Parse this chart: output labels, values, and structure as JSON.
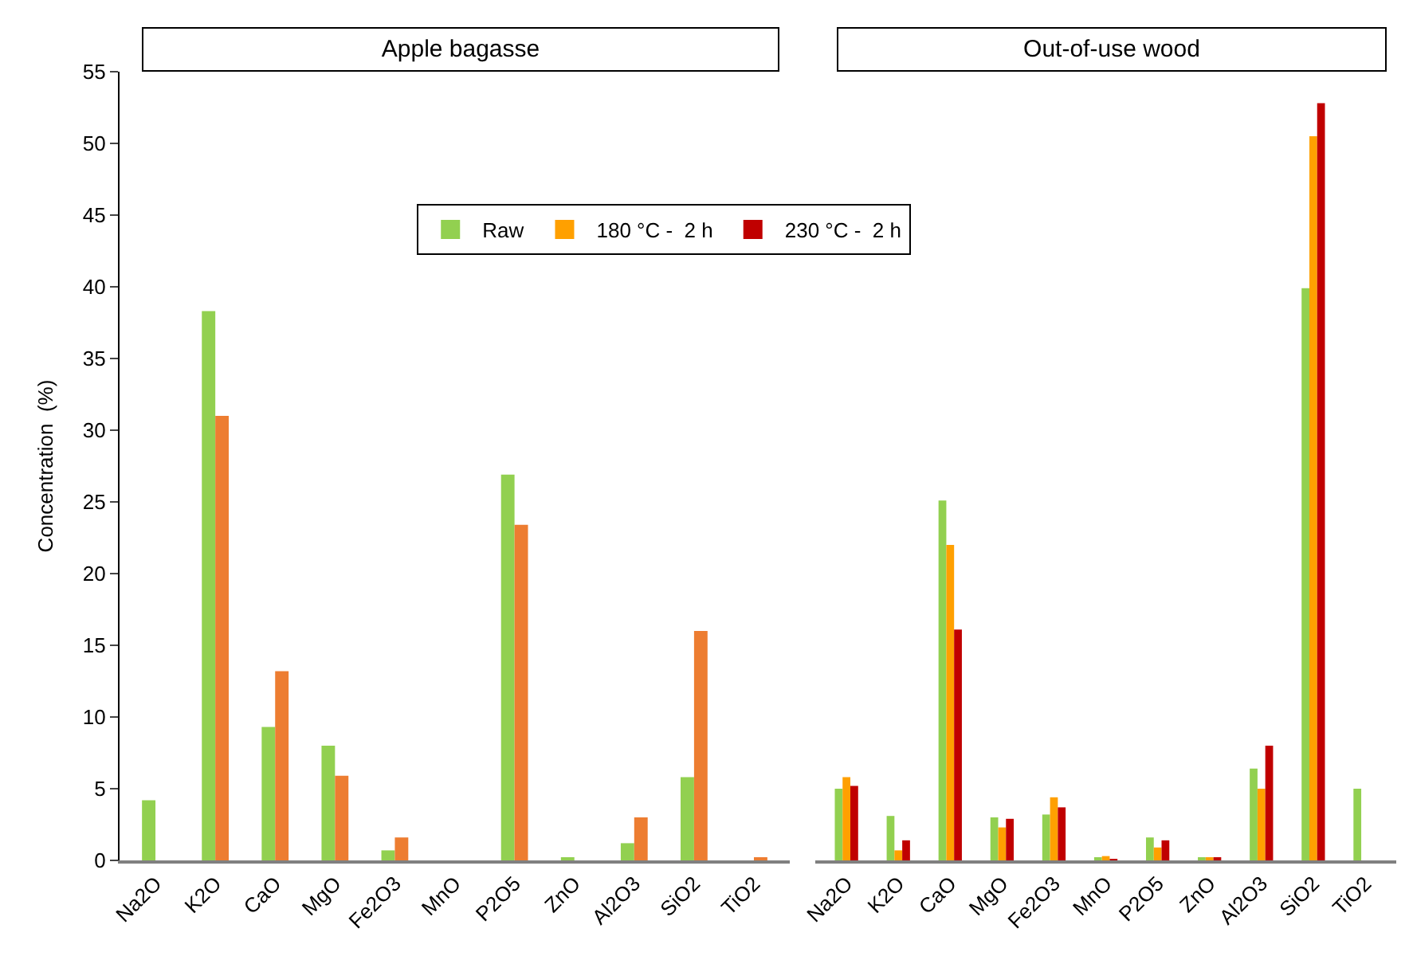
{
  "chart_data": [
    {
      "type": "bar",
      "title": "Apple bagasse",
      "ylabel": "Concentration  (%)",
      "categories": [
        "Na2O",
        "K2O",
        "CaO",
        "MgO",
        "Fe2O3",
        "MnO",
        "P2O5",
        "ZnO",
        "Al2O3",
        "SiO2",
        "TiO2"
      ],
      "series": [
        {
          "color": "#92d050",
          "values": [
            4.2,
            38.3,
            9.3,
            8.0,
            0.7,
            0,
            26.9,
            0.2,
            1.2,
            5.8,
            0
          ]
        },
        {
          "color": "#ed7d31",
          "values": [
            0,
            31.0,
            13.2,
            5.9,
            1.6,
            0,
            23.4,
            0,
            3.0,
            16.0,
            0.2
          ]
        }
      ],
      "ylim": [
        0,
        55
      ],
      "yticks": [
        0,
        5,
        10,
        15,
        20,
        25,
        30,
        35,
        40,
        45,
        50,
        55
      ],
      "legend": false
    },
    {
      "type": "bar",
      "title": "Out-of-use wood",
      "categories": [
        "Na2O",
        "K2O",
        "CaO",
        "MgO",
        "Fe2O3",
        "MnO",
        "P2O5",
        "ZnO",
        "Al2O3",
        "SiO2",
        "TiO2"
      ],
      "series": [
        {
          "name": "Raw",
          "color": "#92d050",
          "values": [
            5.0,
            3.1,
            25.1,
            3.0,
            3.2,
            0.2,
            1.6,
            0.2,
            6.4,
            39.9,
            5.0
          ]
        },
        {
          "name": "180 °C -  2 h",
          "color": "#ffa000",
          "values": [
            5.8,
            0.7,
            22.0,
            2.3,
            4.4,
            0.3,
            0.9,
            0.2,
            5.0,
            50.5,
            null
          ]
        },
        {
          "name": "230 °C -  2 h",
          "color": "#c00000",
          "values": [
            5.2,
            1.4,
            16.1,
            2.9,
            3.7,
            0.1,
            1.4,
            0.2,
            8.0,
            52.8,
            null
          ]
        }
      ],
      "ylim": [
        0,
        55
      ],
      "yticks": [
        0,
        5,
        10,
        15,
        20,
        25,
        30,
        35,
        40,
        45,
        50,
        55
      ],
      "tick_labels": "x",
      "legend": "top left"
    }
  ]
}
